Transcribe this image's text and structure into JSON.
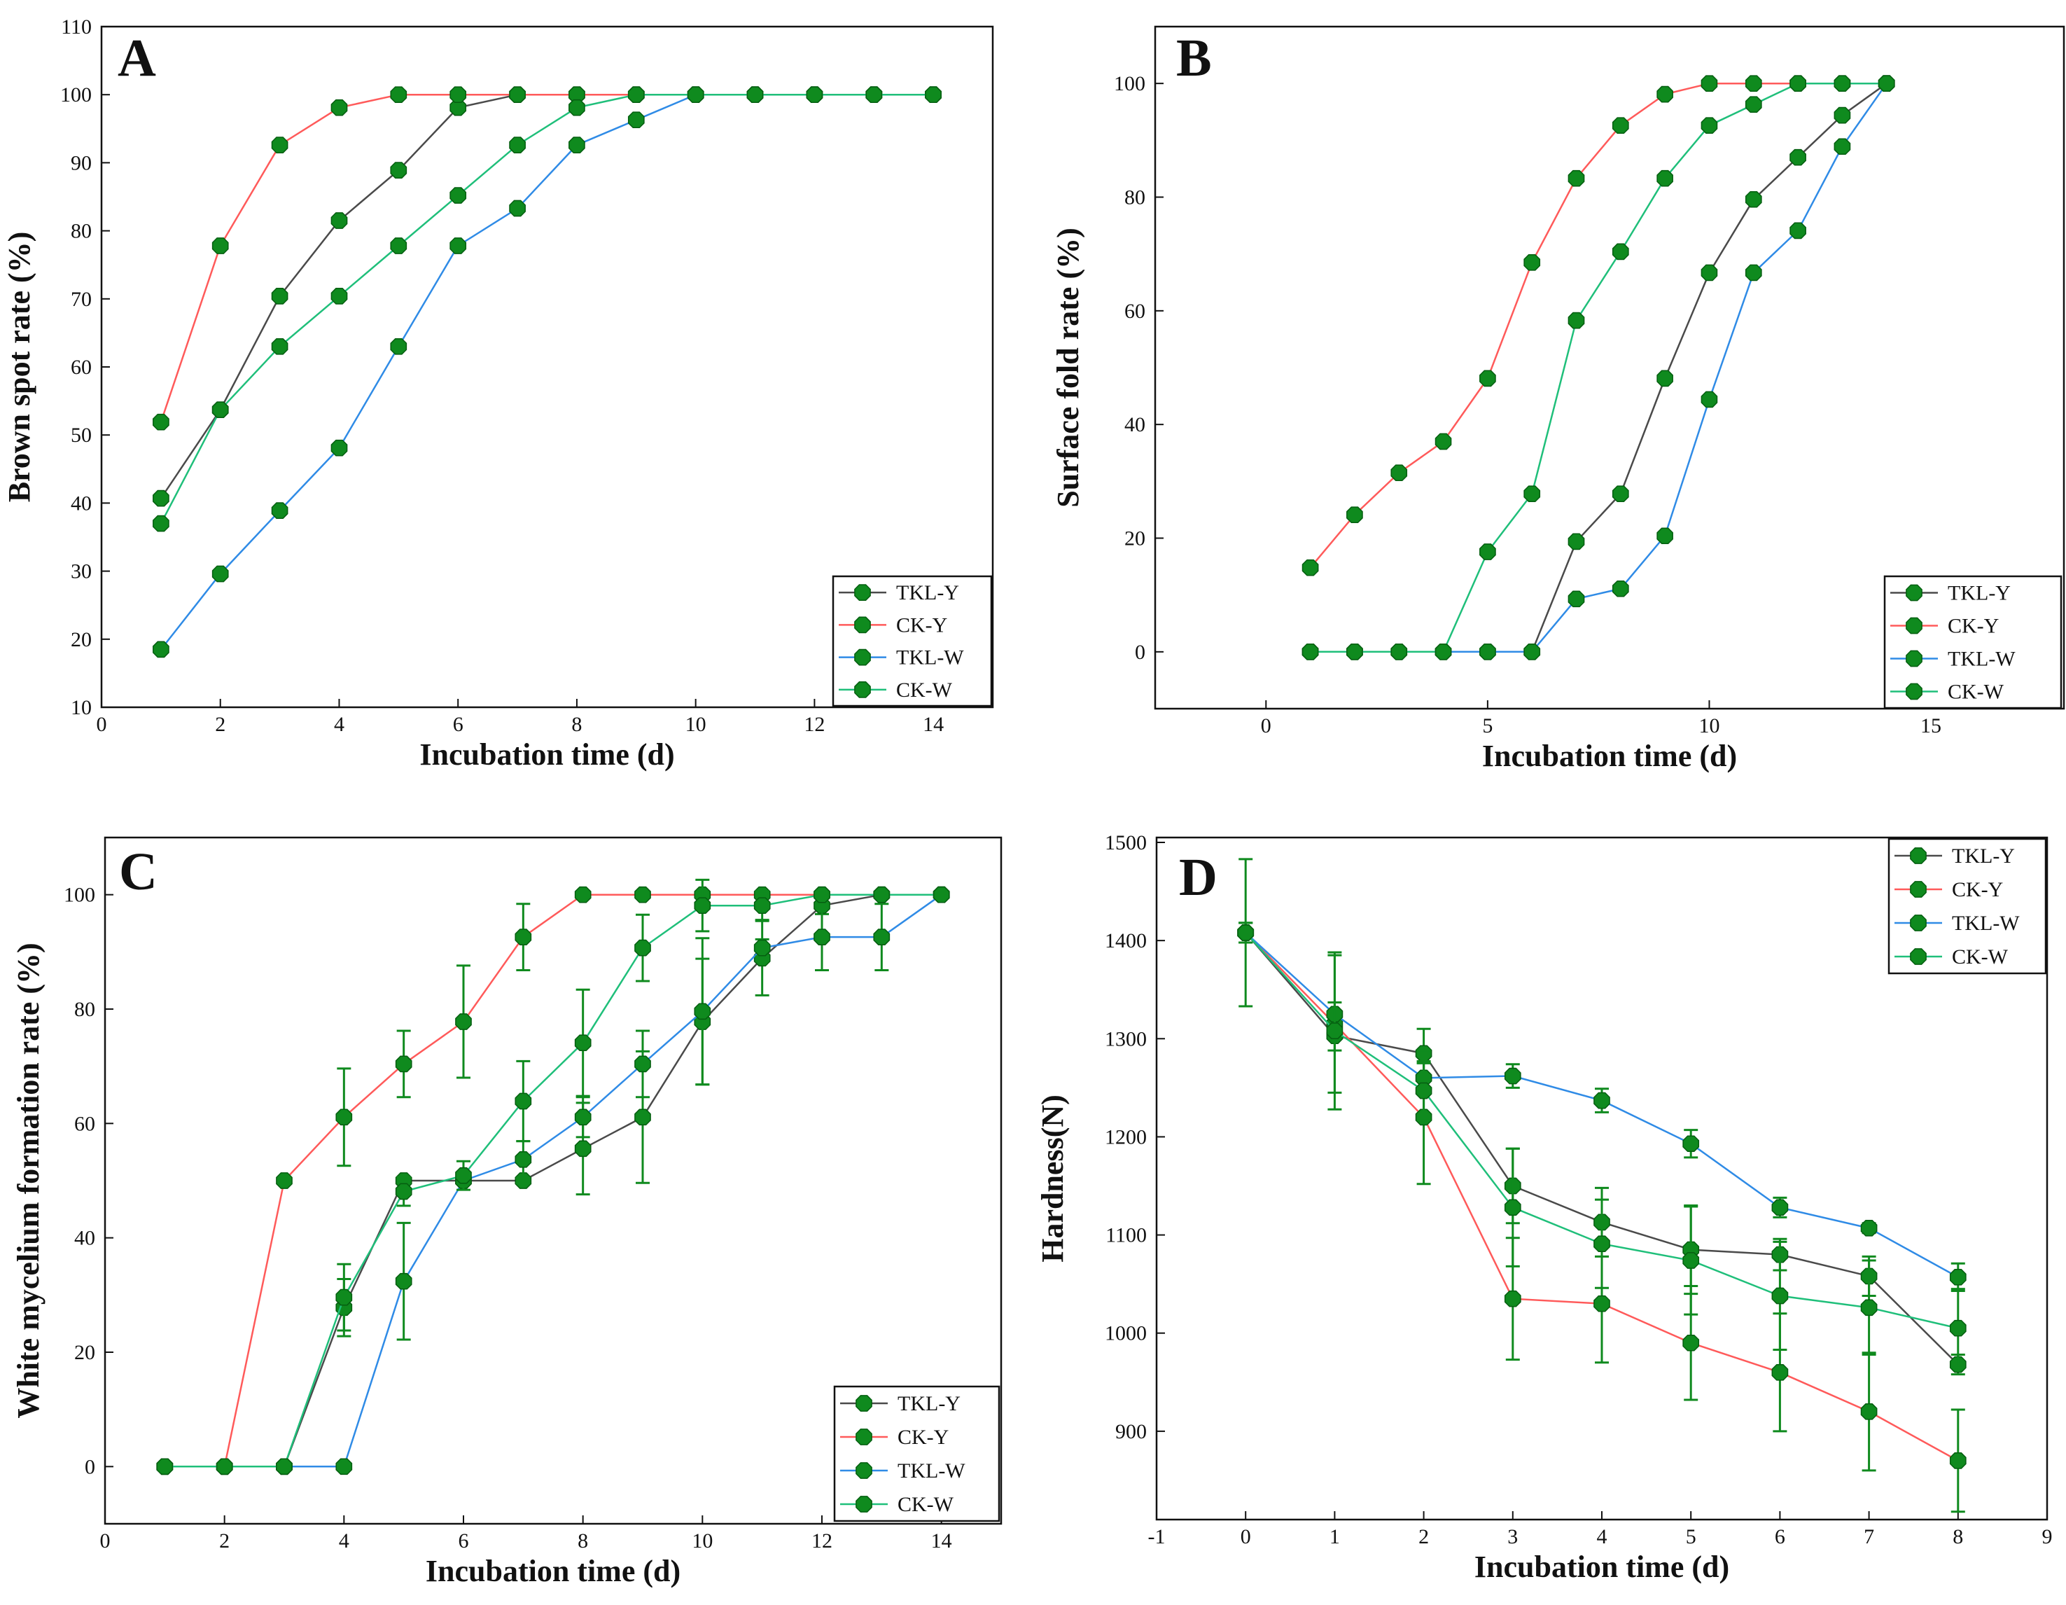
{
  "figure": {
    "marker_color": "#0f8a1e",
    "marker_edge": "#055e10"
  },
  "chart_data": [
    {
      "panel": "A",
      "type": "line",
      "xlabel": "Incubation time (d)",
      "ylabel": "Brown spot rate (%)",
      "xlim": [
        0,
        15
      ],
      "ylim": [
        10,
        110
      ],
      "xticks": [
        0,
        2,
        4,
        6,
        8,
        10,
        12,
        14
      ],
      "yticks": [
        10,
        20,
        30,
        40,
        50,
        60,
        70,
        80,
        90,
        100,
        110
      ],
      "legend_position": "bottom-right",
      "series": [
        {
          "name": "TKL-Y",
          "color": "#4a4a4a",
          "x": [
            1,
            2,
            3,
            4,
            5,
            6,
            7,
            8,
            9,
            10,
            11,
            12,
            13,
            14
          ],
          "y": [
            40.7,
            53.7,
            70.4,
            81.5,
            88.9,
            98.1,
            100,
            100,
            100,
            100,
            100,
            100,
            100,
            100
          ]
        },
        {
          "name": "CK-Y",
          "color": "#ff5a5a",
          "x": [
            1,
            2,
            3,
            4,
            5,
            6,
            7,
            8,
            9,
            10,
            11,
            12,
            13,
            14
          ],
          "y": [
            51.9,
            77.8,
            92.6,
            98.1,
            100,
            100,
            100,
            100,
            100,
            100,
            100,
            100,
            100,
            100
          ]
        },
        {
          "name": "TKL-W",
          "color": "#2f8be6",
          "x": [
            1,
            2,
            3,
            4,
            5,
            6,
            7,
            8,
            9,
            10,
            11,
            12,
            13,
            14
          ],
          "y": [
            18.5,
            29.6,
            38.9,
            48.1,
            63.0,
            77.8,
            83.3,
            92.6,
            96.3,
            100,
            100,
            100,
            100,
            100
          ]
        },
        {
          "name": "CK-W",
          "color": "#1fbf7a",
          "x": [
            1,
            2,
            3,
            4,
            5,
            6,
            7,
            8,
            9,
            10,
            11,
            12,
            13,
            14
          ],
          "y": [
            37.0,
            53.7,
            63.0,
            70.4,
            77.8,
            85.2,
            92.6,
            98.1,
            100,
            100,
            100,
            100,
            100,
            100
          ]
        }
      ]
    },
    {
      "panel": "B",
      "type": "line",
      "xlabel": "Incubation time (d)",
      "ylabel": "Surface fold rate (%)",
      "xlim": [
        -2.5,
        18
      ],
      "ylim": [
        -10,
        110
      ],
      "xticks": [
        0,
        5,
        10,
        15
      ],
      "yticks": [
        0,
        20,
        40,
        60,
        80,
        100
      ],
      "legend_position": "bottom-right",
      "series": [
        {
          "name": "TKL-Y",
          "color": "#4a4a4a",
          "x": [
            1,
            2,
            3,
            4,
            5,
            6,
            7,
            8,
            9,
            10,
            11,
            12,
            13,
            14
          ],
          "y": [
            0,
            0,
            0,
            0,
            0,
            0,
            19.4,
            27.8,
            48.1,
            66.7,
            79.6,
            87.0,
            94.4,
            100
          ]
        },
        {
          "name": "CK-Y",
          "color": "#ff5a5a",
          "x": [
            1,
            2,
            3,
            4,
            5,
            6,
            7,
            8,
            9,
            10,
            11,
            12,
            13,
            14
          ],
          "y": [
            14.8,
            24.1,
            31.5,
            37.0,
            48.1,
            68.5,
            83.3,
            92.6,
            98.1,
            100,
            100,
            100,
            100,
            100
          ]
        },
        {
          "name": "TKL-W",
          "color": "#2f8be6",
          "x": [
            1,
            2,
            3,
            4,
            5,
            6,
            7,
            8,
            9,
            10,
            11,
            12,
            13,
            14
          ],
          "y": [
            0,
            0,
            0,
            0,
            0,
            0,
            9.3,
            11.1,
            20.4,
            44.4,
            66.7,
            74.1,
            88.9,
            100
          ]
        },
        {
          "name": "CK-W",
          "color": "#1fbf7a",
          "x": [
            1,
            2,
            3,
            4,
            5,
            6,
            7,
            8,
            9,
            10,
            11,
            12,
            13,
            14
          ],
          "y": [
            0,
            0,
            0,
            0,
            17.6,
            27.8,
            58.3,
            70.4,
            83.3,
            92.6,
            96.3,
            100,
            100,
            100
          ]
        }
      ]
    },
    {
      "panel": "C",
      "type": "line",
      "xlabel": "Incubation time (d)",
      "ylabel": "White mycelium formation rate (%)",
      "xlim": [
        0,
        15
      ],
      "ylim": [
        -10,
        110
      ],
      "xticks": [
        0,
        2,
        4,
        6,
        8,
        10,
        12,
        14
      ],
      "yticks": [
        0,
        20,
        40,
        60,
        80,
        100
      ],
      "legend_position": "bottom-right",
      "series": [
        {
          "name": "TKL-Y",
          "color": "#4a4a4a",
          "x": [
            1,
            2,
            3,
            4,
            5,
            6,
            7,
            8,
            9,
            10,
            11,
            12,
            13,
            14
          ],
          "y": [
            0,
            0,
            0,
            27.8,
            50.0,
            50.0,
            50.0,
            55.6,
            61.1,
            77.8,
            88.9,
            98.1,
            100,
            100
          ],
          "err": [
            0,
            0,
            0,
            5,
            0,
            0,
            0,
            8,
            11.5,
            11,
            6.5,
            1.5,
            0,
            0
          ]
        },
        {
          "name": "CK-Y",
          "color": "#ff5a5a",
          "x": [
            1,
            2,
            3,
            4,
            5,
            6,
            7,
            8,
            9,
            10,
            11,
            12,
            13,
            14
          ],
          "y": [
            0,
            0,
            50.0,
            61.1,
            70.4,
            77.8,
            92.6,
            100,
            100,
            100,
            100,
            100,
            100,
            100
          ],
          "err": [
            0,
            0,
            0,
            8.5,
            5.8,
            9.8,
            5.8,
            0,
            0,
            0,
            0,
            0,
            0,
            0
          ]
        },
        {
          "name": "TKL-W",
          "color": "#2f8be6",
          "x": [
            1,
            2,
            3,
            4,
            5,
            6,
            7,
            8,
            9,
            10,
            11,
            12,
            13,
            14
          ],
          "y": [
            0,
            0,
            0,
            0,
            32.4,
            50.0,
            53.7,
            61.1,
            70.4,
            79.6,
            90.7,
            92.6,
            92.6,
            100
          ],
          "err": [
            0,
            0,
            0,
            0,
            10.2,
            0,
            3.2,
            3.5,
            5.8,
            12.8,
            1.5,
            5.8,
            5.8,
            0
          ]
        },
        {
          "name": "CK-W",
          "color": "#1fbf7a",
          "x": [
            1,
            2,
            3,
            4,
            5,
            6,
            7,
            8,
            9,
            10,
            11,
            12,
            13,
            14
          ],
          "y": [
            0,
            0,
            0,
            29.6,
            48.1,
            50.9,
            63.9,
            74.1,
            90.7,
            98.1,
            98.1,
            100,
            100,
            100
          ],
          "err": [
            0,
            0,
            0,
            5.8,
            2.5,
            2.5,
            7,
            9.3,
            5.8,
            4.5,
            2.5,
            0,
            0,
            0
          ]
        }
      ]
    },
    {
      "panel": "D",
      "type": "line",
      "xlabel": "Incubation time (d)",
      "ylabel": "Hardness(N)",
      "xlim": [
        -1,
        9
      ],
      "ylim": [
        810,
        1505
      ],
      "xticks": [
        -1,
        0,
        1,
        2,
        3,
        4,
        5,
        6,
        7,
        8,
        9
      ],
      "yticks": [
        900,
        1000,
        1100,
        1200,
        1300,
        1400,
        1500
      ],
      "legend_position": "top-right",
      "series": [
        {
          "name": "TKL-Y",
          "color": "#4a4a4a",
          "x": [
            0,
            1,
            2,
            3,
            4,
            5,
            6,
            7,
            8
          ],
          "y": [
            1408,
            1303,
            1285,
            1150,
            1113,
            1085,
            1080,
            1058,
            968
          ],
          "err": [
            10,
            15,
            25,
            38,
            35,
            45,
            16,
            20,
            10
          ]
        },
        {
          "name": "CK-Y",
          "color": "#ff5a5a",
          "x": [
            0,
            1,
            2,
            3,
            4,
            5,
            6,
            7,
            8
          ],
          "y": [
            1408,
            1315,
            1220,
            1035,
            1030,
            990,
            960,
            920,
            870
          ],
          "err": [
            10,
            70,
            68,
            62,
            60,
            58,
            60,
            60,
            52
          ]
        },
        {
          "name": "TKL-W",
          "color": "#2f8be6",
          "x": [
            0,
            1,
            2,
            3,
            4,
            5,
            6,
            7,
            8
          ],
          "y": [
            1408,
            1325,
            1260,
            1262,
            1237,
            1193,
            1128,
            1107,
            1057
          ],
          "err": [
            10,
            12,
            15,
            12,
            12,
            14,
            10,
            5,
            14
          ]
        },
        {
          "name": "CK-W",
          "color": "#1fbf7a",
          "x": [
            0,
            1,
            2,
            3,
            4,
            5,
            6,
            7,
            8
          ],
          "y": [
            1408,
            1308,
            1247,
            1128,
            1091,
            1074,
            1038,
            1026,
            1005
          ],
          "err": [
            75,
            80,
            30,
            60,
            45,
            55,
            55,
            48,
            40
          ]
        }
      ]
    }
  ]
}
